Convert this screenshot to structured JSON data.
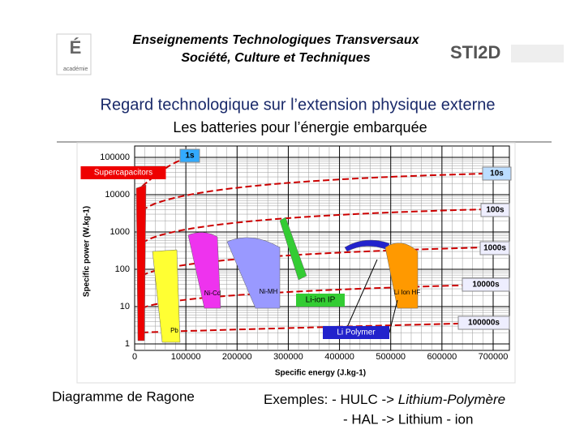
{
  "header": {
    "lines": [
      "Enseignements Technologiques Transversaux",
      "Société, Culture et Techniques"
    ],
    "logo_left": "académie",
    "logo_right": "STI2D"
  },
  "title": "Regard technologique sur l’extension physique externe",
  "subtitle": "Les batteries pour l’énergie embarquée",
  "chart_data": {
    "type": "ragone",
    "x_label": "Specific energy (J.kg-1)",
    "y_label": "Specific power (W.kg-1)",
    "xlim": [
      0,
      700000
    ],
    "xticks": [
      0,
      100000,
      200000,
      300000,
      400000,
      500000,
      600000,
      700000
    ],
    "ylim": [
      1,
      100000
    ],
    "yticks": [
      1,
      10,
      100,
      1000,
      10000,
      100000
    ],
    "y_log": true,
    "grid": true,
    "time_labels": [
      "1s",
      "10s",
      "100s",
      "1000s",
      "10000s",
      "100000s"
    ],
    "regions": [
      "Supercapacitors",
      "Pb",
      "Ni-Cd",
      "Ni-MH",
      "Li-ion IP",
      "Li Polymer",
      "Li Ion HF"
    ]
  },
  "captions": {
    "left": "Diagramme de Ragone",
    "right_prefix": "Exemples: - HULC -> ",
    "right_italic": "Lithium-Polymère",
    "right_line2": "- HAL -> Lithium - ion"
  }
}
